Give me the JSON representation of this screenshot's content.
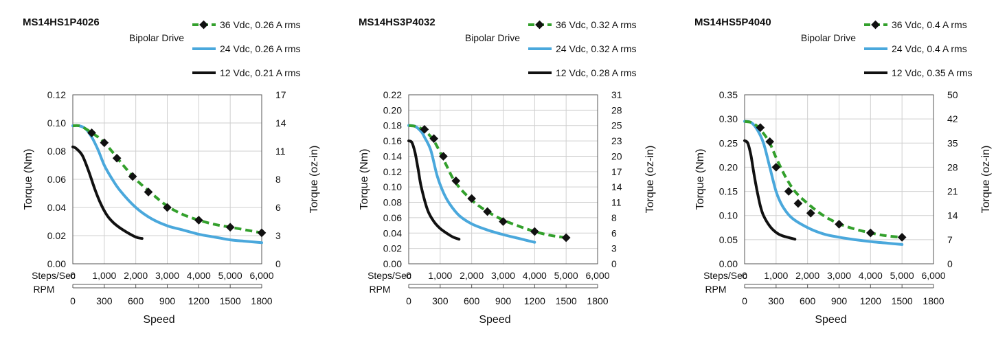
{
  "colors": {
    "s36": "#33a02c",
    "s24": "#4aa8dc",
    "s12": "#111111",
    "grid": "#cfcfcf",
    "axis": "#555555",
    "marker": "#111111"
  },
  "chart_data": [
    {
      "type": "line",
      "title": "MS14HS1P4026",
      "drive_label": "Bipolar Drive",
      "ylabel": "Torque (Nm)",
      "y2label": "Torque (oz-in)",
      "xlabel": "Speed",
      "x_row1_label": "Steps/Sec",
      "x_row2_label": "RPM",
      "xlim": [
        0,
        6000
      ],
      "ylim": [
        0,
        0.12
      ],
      "grid": true,
      "legend_position": "top-right",
      "y_ticks": [
        "0.00",
        "0.02",
        "0.04",
        "0.06",
        "0.08",
        "0.10",
        "0.12"
      ],
      "y2_ticks": [
        "0",
        "3",
        "6",
        "8",
        "11",
        "14",
        "17"
      ],
      "x_ticks": [
        "0",
        "1,000",
        "2,000",
        "3,000",
        "4,000",
        "5,000",
        "6,000"
      ],
      "rpm_ticks": [
        "0",
        "300",
        "600",
        "900",
        "1200",
        "1500",
        "1800"
      ],
      "series": [
        {
          "name": "36 Vdc, 0.26 A rms",
          "color_key": "s36",
          "style": "dashed-markers",
          "x": [
            0,
            200,
            400,
            600,
            800,
            1000,
            1200,
            1600,
            2000,
            2500,
            3000,
            3500,
            4000,
            4500,
            5000,
            5500,
            6000
          ],
          "y": [
            0.098,
            0.098,
            0.096,
            0.093,
            0.09,
            0.086,
            0.081,
            0.07,
            0.06,
            0.05,
            0.041,
            0.035,
            0.031,
            0.028,
            0.026,
            0.024,
            0.022
          ],
          "markers_x": [
            600,
            1000,
            1400,
            1900,
            2400,
            3000,
            4000,
            5000,
            6000
          ],
          "markers_y": [
            0.093,
            0.086,
            0.075,
            0.062,
            0.051,
            0.04,
            0.031,
            0.026,
            0.022
          ]
        },
        {
          "name": "24 Vdc, 0.26 A rms",
          "color_key": "s24",
          "style": "solid",
          "x": [
            0,
            200,
            400,
            600,
            800,
            1000,
            1200,
            1500,
            2000,
            2500,
            3000,
            3500,
            4000,
            4500,
            5000,
            5500,
            6000
          ],
          "y": [
            0.098,
            0.098,
            0.096,
            0.09,
            0.081,
            0.07,
            0.062,
            0.052,
            0.04,
            0.032,
            0.027,
            0.024,
            0.021,
            0.019,
            0.017,
            0.016,
            0.015
          ]
        },
        {
          "name": "12 Vdc, 0.21 A rms",
          "color_key": "s12",
          "style": "solid",
          "x": [
            0,
            100,
            300,
            500,
            700,
            900,
            1100,
            1300,
            1600,
            2000,
            2200
          ],
          "y": [
            0.083,
            0.082,
            0.077,
            0.066,
            0.053,
            0.042,
            0.034,
            0.029,
            0.024,
            0.019,
            0.018
          ]
        }
      ]
    },
    {
      "type": "line",
      "title": "MS14HS3P4032",
      "drive_label": "Bipolar Drive",
      "ylabel": "Torque (Nm)",
      "y2label": "Torque (oz-in)",
      "xlabel": "Speed",
      "x_row1_label": "Steps/Sec",
      "x_row2_label": "RPM",
      "xlim": [
        0,
        6000
      ],
      "ylim": [
        0,
        0.22
      ],
      "grid": true,
      "legend_position": "top-right",
      "y_ticks": [
        "0.00",
        "0.02",
        "0.04",
        "0.06",
        "0.08",
        "0.10",
        "0.12",
        "0.14",
        "0.16",
        "0.18",
        "0.20",
        "0.22"
      ],
      "y2_ticks": [
        "0",
        "3",
        "6",
        "8",
        "11",
        "14",
        "17",
        "20",
        "23",
        "25",
        "28",
        "31"
      ],
      "x_ticks": [
        "0",
        "1,000",
        "2,000",
        "3,000",
        "4,000",
        "5,000",
        "6,000"
      ],
      "rpm_ticks": [
        "0",
        "300",
        "600",
        "900",
        "1200",
        "1500",
        "1800"
      ],
      "series": [
        {
          "name": "36 Vdc, 0.32 A rms",
          "color_key": "s36",
          "style": "dashed-markers",
          "x": [
            0,
            200,
            400,
            600,
            800,
            1000,
            1200,
            1500,
            2000,
            2500,
            3000,
            3500,
            4000,
            4500,
            5000
          ],
          "y": [
            0.18,
            0.179,
            0.176,
            0.17,
            0.16,
            0.145,
            0.128,
            0.105,
            0.083,
            0.068,
            0.057,
            0.049,
            0.042,
            0.037,
            0.034
          ],
          "markers_x": [
            500,
            800,
            1100,
            1500,
            2000,
            2500,
            3000,
            4000,
            5000
          ],
          "markers_y": [
            0.175,
            0.163,
            0.14,
            0.108,
            0.085,
            0.068,
            0.055,
            0.042,
            0.034
          ]
        },
        {
          "name": "24 Vdc, 0.32 A rms",
          "color_key": "s24",
          "style": "solid",
          "x": [
            0,
            200,
            400,
            500,
            700,
            900,
            1100,
            1300,
            1600,
            2000,
            2500,
            3000,
            3500,
            4000
          ],
          "y": [
            0.18,
            0.179,
            0.172,
            0.165,
            0.148,
            0.115,
            0.093,
            0.078,
            0.063,
            0.052,
            0.044,
            0.038,
            0.033,
            0.028
          ]
        },
        {
          "name": "12 Vdc, 0.28 A rms",
          "color_key": "s12",
          "style": "solid",
          "x": [
            0,
            100,
            200,
            300,
            400,
            600,
            800,
            1000,
            1200,
            1400,
            1600
          ],
          "y": [
            0.16,
            0.158,
            0.145,
            0.123,
            0.1,
            0.07,
            0.055,
            0.046,
            0.04,
            0.035,
            0.032
          ]
        }
      ]
    },
    {
      "type": "line",
      "title": "MS14HS5P4040",
      "drive_label": "Bipolar Drive",
      "ylabel": "Torque (Nm)",
      "y2label": "Torque (oz-in)",
      "xlabel": "Speed",
      "x_row1_label": "Steps/Sec",
      "x_row2_label": "RPM",
      "xlim": [
        0,
        6000
      ],
      "ylim": [
        0,
        0.35
      ],
      "grid": true,
      "legend_position": "top-right",
      "y_ticks": [
        "0.00",
        "0.05",
        "0.10",
        "0.15",
        "0.20",
        "0.25",
        "0.30",
        "0.35"
      ],
      "y2_ticks": [
        "0",
        "7",
        "14",
        "21",
        "28",
        "35",
        "42",
        "50"
      ],
      "x_ticks": [
        "0",
        "1,000",
        "2,000",
        "3,000",
        "4,000",
        "5,000",
        "6,000"
      ],
      "rpm_ticks": [
        "0",
        "300",
        "600",
        "900",
        "1200",
        "1500",
        "1800"
      ],
      "series": [
        {
          "name": "36 Vdc, 0.4 A rms",
          "color_key": "s36",
          "style": "dashed-markers",
          "x": [
            0,
            200,
            400,
            600,
            800,
            1000,
            1300,
            1600,
            2000,
            2500,
            3000,
            3500,
            4000,
            4500,
            5000
          ],
          "y": [
            0.295,
            0.293,
            0.285,
            0.27,
            0.25,
            0.22,
            0.18,
            0.15,
            0.125,
            0.1,
            0.083,
            0.072,
            0.064,
            0.058,
            0.055
          ],
          "markers_x": [
            500,
            800,
            1000,
            1400,
            1700,
            2100,
            3000,
            4000,
            5000
          ],
          "markers_y": [
            0.282,
            0.253,
            0.2,
            0.15,
            0.125,
            0.105,
            0.082,
            0.064,
            0.055
          ]
        },
        {
          "name": "24 Vdc, 0.4 A rms",
          "color_key": "s24",
          "style": "solid",
          "x": [
            0,
            200,
            400,
            600,
            800,
            1000,
            1200,
            1500,
            2000,
            2500,
            3000,
            3500,
            4000,
            4500,
            5000
          ],
          "y": [
            0.295,
            0.293,
            0.278,
            0.25,
            0.2,
            0.15,
            0.12,
            0.095,
            0.075,
            0.062,
            0.055,
            0.05,
            0.046,
            0.043,
            0.04
          ]
        },
        {
          "name": "12 Vdc, 0.35 A rms",
          "color_key": "s12",
          "style": "solid",
          "x": [
            0,
            100,
            200,
            300,
            400,
            500,
            600,
            800,
            1000,
            1200,
            1600
          ],
          "y": [
            0.255,
            0.25,
            0.225,
            0.185,
            0.15,
            0.12,
            0.1,
            0.078,
            0.065,
            0.058,
            0.051
          ]
        }
      ]
    }
  ]
}
